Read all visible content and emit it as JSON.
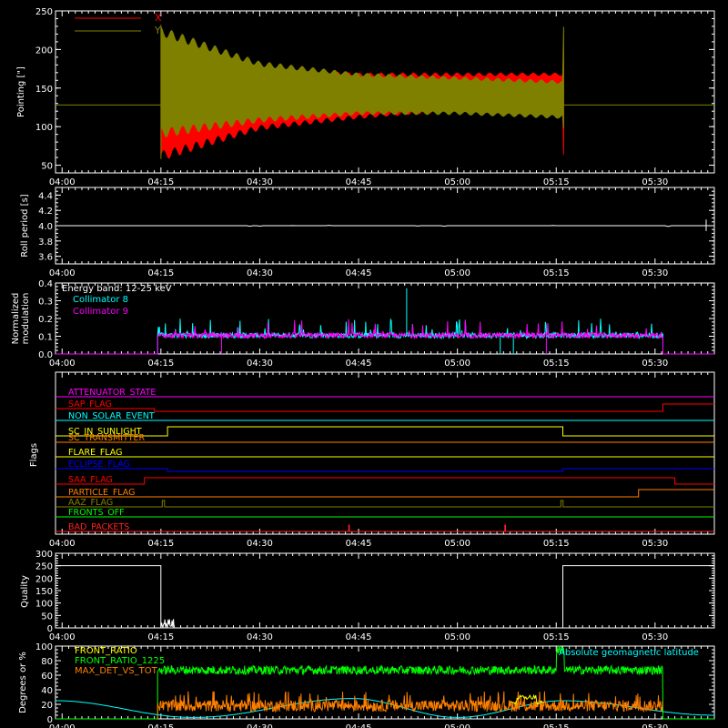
{
  "x_ticks": [
    "04:00",
    "04:15",
    "04:30",
    "04:45",
    "05:00",
    "05:15",
    "05:30"
  ],
  "colors": {
    "red": "#ff0000",
    "olive": "#808000",
    "white": "#ffffff",
    "cyan": "#00ffff",
    "magenta": "#ff00ff",
    "orange": "#ff8000",
    "yellow": "#ffff00",
    "blue": "#0000ff",
    "green": "#00ff00",
    "darkred": "#ff2020"
  },
  "panels": {
    "pointing": {
      "ylabel": "Pointing [\"]",
      "yticks": [
        "250",
        "200",
        "150",
        "100",
        "50"
      ],
      "legend": [
        "X",
        "Y"
      ]
    },
    "roll": {
      "ylabel": "Roll period [s]",
      "yticks": [
        "4.4",
        "4.2",
        "4.0",
        "3.8",
        "3.6"
      ]
    },
    "modulation": {
      "ylabel": "Normalized",
      "ylabel2": "modulation",
      "yticks": [
        "0.4",
        "0.3",
        "0.2",
        "0.1",
        "0.0"
      ],
      "legend": [
        "Energy band: 12-25 keV",
        "Collimator 8",
        "Collimator 9"
      ]
    },
    "flags": {
      "ylabel": "Flags",
      "names": [
        "ATTENUATOR_STATE",
        "SAP_FLAG",
        "NON_SOLAR_EVENT",
        "SC_IN_SUNLIGHT",
        "SC_TRANSMITTER",
        "FLARE_FLAG",
        "ECLIPSE_FLAG",
        "SAA_FLAG",
        "PARTICLE_FLAG",
        "AAZ_FLAG",
        "FRONTS_OFF",
        "BAD_PACKETS"
      ]
    },
    "quality": {
      "ylabel": "Quality",
      "yticks": [
        "300",
        "250",
        "200",
        "150",
        "100",
        "50",
        "0"
      ]
    },
    "ratio": {
      "ylabel": "Degrees or %",
      "yticks": [
        "100",
        "80",
        "60",
        "40",
        "20",
        "0"
      ],
      "legend": [
        "FRONT_RATIO",
        "FRONT_RATIO_1225",
        "MAX_DET_VS_TOT"
      ],
      "legend_right": "Absolute geomagnetic latitude"
    }
  },
  "chart_data": [
    {
      "type": "line",
      "title": "",
      "ylabel": "Pointing [\"]",
      "xlim": [
        "03:59",
        "05:39"
      ],
      "ylim": [
        40,
        250
      ],
      "series": [
        {
          "name": "X",
          "color": "#ff0000",
          "note_values": "oscillating envelope",
          "x": [
            "03:59",
            "04:15",
            "04:15",
            "04:30",
            "04:45",
            "05:00",
            "05:16",
            "05:16",
            "05:39"
          ],
          "upper": [
            128,
            128,
            205,
            175,
            170,
            170,
            170,
            128,
            128
          ],
          "lower": [
            128,
            128,
            55,
            95,
            110,
            120,
            125,
            128,
            128
          ]
        },
        {
          "name": "Y",
          "color": "#808000",
          "x": [
            "03:59",
            "04:15",
            "04:15",
            "04:30",
            "04:45",
            "05:00",
            "05:16",
            "05:16",
            "05:39"
          ],
          "upper": [
            128,
            128,
            230,
            185,
            170,
            165,
            160,
            128,
            128
          ],
          "lower": [
            128,
            128,
            85,
            105,
            115,
            115,
            110,
            128,
            128
          ]
        }
      ]
    },
    {
      "type": "line",
      "ylabel": "Roll period [s]",
      "ylim": [
        3.5,
        4.5
      ],
      "series": [
        {
          "name": "",
          "color": "#ffffff",
          "x": [
            "03:59",
            "05:39"
          ],
          "values": [
            4.0,
            4.0
          ]
        }
      ]
    },
    {
      "type": "line",
      "ylabel": "Normalized modulation",
      "ylim": [
        0,
        0.4
      ],
      "series": [
        {
          "name": "Collimator 8",
          "color": "#00ffff",
          "x": [
            "03:59",
            "04:14",
            "04:14",
            "05:31",
            "05:31",
            "05:39"
          ],
          "values": [
            0,
            0,
            0.1,
            0.1,
            0,
            0
          ]
        },
        {
          "name": "Collimator 9",
          "color": "#ff00ff",
          "x": [
            "03:59",
            "04:14",
            "04:14",
            "05:31",
            "05:31",
            "05:39"
          ],
          "values": [
            0,
            0,
            0.1,
            0.1,
            0,
            0
          ]
        }
      ]
    },
    {
      "type": "line",
      "ylabel": "Quality",
      "ylim": [
        0,
        300
      ],
      "series": [
        {
          "name": "",
          "color": "#ffffff",
          "x": [
            "03:59",
            "04:15",
            "04:15",
            "05:16",
            "05:16",
            "05:39"
          ],
          "values": [
            250,
            250,
            0,
            0,
            250,
            250
          ]
        }
      ]
    },
    {
      "type": "line",
      "ylabel": "Degrees or %",
      "ylim": [
        0,
        100
      ],
      "series": [
        {
          "name": "FRONT_RATIO",
          "color": "#ffff00",
          "x": [
            "04:14",
            "05:31"
          ],
          "values": [
            20,
            20
          ]
        },
        {
          "name": "FRONT_RATIO_1225",
          "color": "#00ff00",
          "x": [
            "04:14",
            "05:15",
            "05:15",
            "05:16",
            "05:31"
          ],
          "values": [
            68,
            68,
            95,
            68,
            68
          ]
        },
        {
          "name": "MAX_DET_VS_TOT",
          "color": "#ff8000",
          "x": [
            "04:14",
            "05:31"
          ],
          "values": [
            20,
            20
          ]
        },
        {
          "name": "Absolute geomagnetic latitude",
          "color": "#00ffff",
          "x": [
            "03:59",
            "04:20",
            "04:44",
            "05:00",
            "05:16",
            "05:39"
          ],
          "values": [
            25,
            2,
            28,
            2,
            25,
            5
          ]
        }
      ]
    }
  ]
}
